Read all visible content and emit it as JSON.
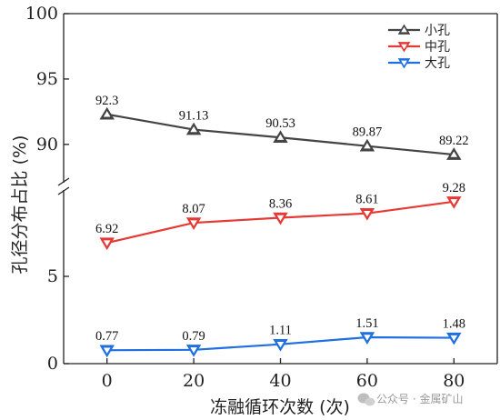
{
  "chart_data": {
    "type": "line",
    "xlabel": "冻融循环次数 (次)",
    "ylabel": "孔径分布占比 (%)",
    "x": [
      0,
      20,
      40,
      60,
      80
    ],
    "xlim": [
      -10,
      90
    ],
    "xticks": [
      0,
      20,
      40,
      60,
      80
    ],
    "y_axis_broken": true,
    "y_segments": [
      {
        "range": [
          0,
          10
        ],
        "ticks": [
          0,
          5
        ]
      },
      {
        "range": [
          87,
          100
        ],
        "ticks": [
          90,
          95,
          100
        ]
      }
    ],
    "grid": false,
    "legend_position": "top-right",
    "series": [
      {
        "name": "小孔",
        "values": [
          92.3,
          91.13,
          90.53,
          89.87,
          89.22
        ],
        "labels": [
          "92.3",
          "91.13",
          "90.53",
          "89.87",
          "89.22"
        ],
        "color": "#444444",
        "marker": "triangle-up"
      },
      {
        "name": "中孔",
        "values": [
          6.92,
          8.07,
          8.36,
          8.61,
          9.28
        ],
        "labels": [
          "6.92",
          "8.07",
          "8.36",
          "8.61",
          "9.28"
        ],
        "color": "#e53935",
        "marker": "triangle-down"
      },
      {
        "name": "大孔",
        "values": [
          0.77,
          0.79,
          1.11,
          1.51,
          1.48
        ],
        "labels": [
          "0.77",
          "0.79",
          "1.11",
          "1.51",
          "1.48"
        ],
        "color": "#1e6fe0",
        "marker": "triangle-down"
      }
    ]
  },
  "watermark": {
    "icon": "wechat-icon",
    "text": "公众号 · 金属矿山"
  }
}
